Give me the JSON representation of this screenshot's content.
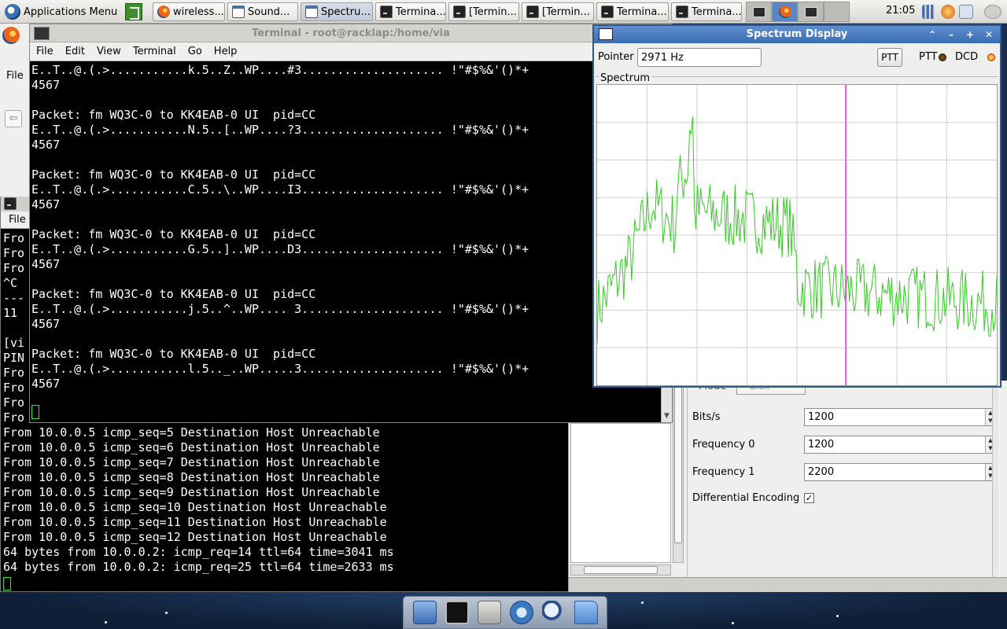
{
  "top_panel": {
    "apps_menu_label": "Applications Menu",
    "tasks": [
      {
        "label": "wireless...",
        "icon": "firefox-icon"
      },
      {
        "label": "Sound...",
        "icon": "window-icon"
      },
      {
        "label": "Spectru...",
        "icon": "window-icon"
      },
      {
        "label": "Termina...",
        "icon": "terminal-icon"
      },
      {
        "label": "[Termin...",
        "icon": "terminal-icon"
      },
      {
        "label": "[Termin...",
        "icon": "terminal-icon"
      },
      {
        "label": "Termina...",
        "icon": "terminal-icon"
      },
      {
        "label": "Termina...",
        "icon": "terminal-icon"
      }
    ],
    "clock": "21:05"
  },
  "terminal_main": {
    "title": "Terminal - root@racklap:/home/via",
    "menu": [
      "File",
      "Edit",
      "View",
      "Terminal",
      "Go",
      "Help"
    ],
    "lines": [
      "E..T..@.(.>...........k.5..Z..WP....#3.................... !\"#$%&'()*+",
      "4567",
      "",
      "Packet: fm WQ3C-0 to KK4EAB-0 UI  pid=CC",
      "E..T..@.(.>...........N.5..[..WP....?3.................... !\"#$%&'()*+",
      "4567",
      "",
      "Packet: fm WQ3C-0 to KK4EAB-0 UI  pid=CC",
      "E..T..@.(.>...........C.5..\\..WP....I3.................... !\"#$%&'()*+",
      "4567",
      "",
      "Packet: fm WQ3C-0 to KK4EAB-0 UI  pid=CC",
      "E..T..@.(.>...........G.5..]..WP....D3.................... !\"#$%&'()*+",
      "4567",
      "",
      "Packet: fm WQ3C-0 to KK4EAB-0 UI  pid=CC",
      "E..T..@.(.>...........j.5..^..WP.... 3.................... !\"#$%&'()*+",
      "4567",
      "",
      "Packet: fm WQ3C-0 to KK4EAB-0 UI  pid=CC",
      "E..T..@.(.>...........l.5.._..WP.....3.................... !\"#$%&'()*+",
      "4567"
    ]
  },
  "left_sliver": {
    "file_label": "File"
  },
  "terminal_back": {
    "menu_label": "File",
    "lines": [
      "Fro",
      "Fro",
      "Fro",
      "^C",
      "---",
      "11",
      "",
      "[vi",
      "PIN",
      "Fro",
      "Fro",
      "Fro",
      "Fro",
      "From 10.0.0.5 icmp_seq=5 Destination Host Unreachable",
      "From 10.0.0.5 icmp_seq=6 Destination Host Unreachable",
      "From 10.0.0.5 icmp_seq=7 Destination Host Unreachable",
      "From 10.0.0.5 icmp_seq=8 Destination Host Unreachable",
      "From 10.0.0.5 icmp_seq=9 Destination Host Unreachable",
      "From 10.0.0.5 icmp_seq=10 Destination Host Unreachable",
      "From 10.0.0.5 icmp_seq=11 Destination Host Unreachable",
      "From 10.0.0.5 icmp_seq=12 Destination Host Unreachable",
      "64 bytes from 10.0.0.2: icmp_req=14 ttl=64 time=3041 ms",
      "64 bytes from 10.0.0.2: icmp_req=25 ttl=64 time=2633 ms"
    ]
  },
  "sound_modem": {
    "mode_label": "Mode",
    "mode_value": "afsk",
    "fields": [
      {
        "label": "Bits/s",
        "value": "1200"
      },
      {
        "label": "Frequency 0",
        "value": "1200"
      },
      {
        "label": "Frequency 1",
        "value": "2200"
      }
    ],
    "differential_label": "Differential Encoding",
    "differential_checked": "✓"
  },
  "spectrum": {
    "title": "Spectrum Display",
    "pointer_label": "Pointer",
    "pointer_value": "2971 Hz",
    "ptt_button": "PTT",
    "ptt_label": "PTT",
    "dcd_label": "DCD",
    "frame_label": "Spectrum",
    "colors": {
      "trace": "#33cc22",
      "marker": "#dd44dd",
      "grid": "#cfcfcf",
      "dcd_led": "#ff7a00",
      "ptt_led": "#5a3a10"
    },
    "marker_fraction": 0.622,
    "grid_divisions": {
      "vertical": 8,
      "horizontal": 8
    }
  },
  "dock": {
    "icons": [
      "home-folder-icon",
      "terminal-icon",
      "file-cabinet-icon",
      "web-browser-icon",
      "search-icon",
      "folder-icon"
    ]
  }
}
